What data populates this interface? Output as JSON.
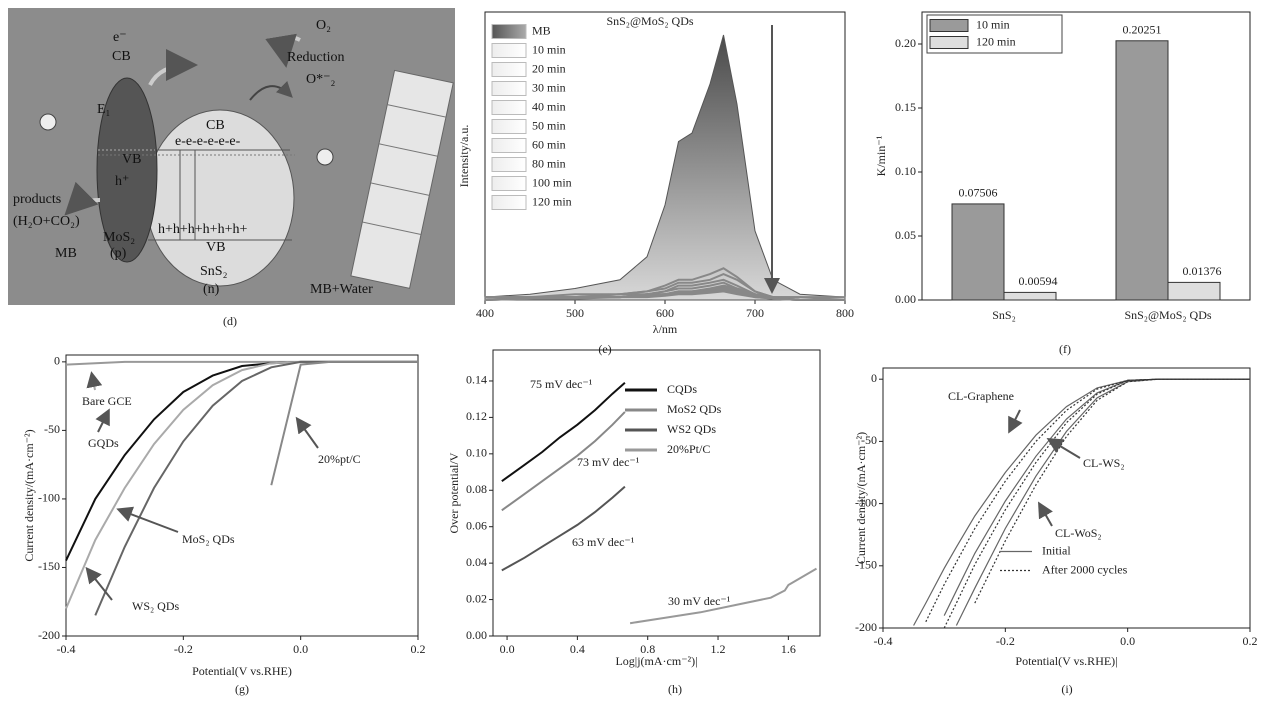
{
  "diagram": {
    "caption": "(d)",
    "labels": [
      "e⁻",
      "CB",
      "E₁",
      "VB",
      "h⁺",
      "products",
      "(H₂O+CO₂)",
      "MoS₂",
      "(p)",
      "MB",
      "CB",
      "e-e-e-e-e-e-",
      "h+h+h+h+h+h+",
      "VB",
      "SnS₂",
      "(n)",
      "O₂",
      "Reduction",
      "O*⁻₂",
      "MB+Water"
    ]
  },
  "chart_data": [
    {
      "type": "line",
      "caption": "(e)",
      "title": "SnS₂@MoS₂ QDs",
      "xlabel": "λ/nm",
      "ylabel": "Intensity/a.u.",
      "xlim": [
        400,
        800
      ],
      "ylim": [
        0,
        1
      ],
      "xticks": [
        400,
        500,
        600,
        700,
        800
      ],
      "legend": "upper left",
      "x": [
        400,
        450,
        500,
        550,
        580,
        600,
        615,
        630,
        650,
        665,
        680,
        700,
        720,
        750,
        800
      ],
      "series": [
        {
          "name": "MB",
          "style": "area",
          "color": "#555555",
          "values": [
            0.01,
            0.02,
            0.04,
            0.07,
            0.15,
            0.33,
            0.55,
            0.58,
            0.75,
            0.92,
            0.68,
            0.24,
            0.07,
            0.02,
            0.01
          ]
        },
        {
          "name": "10 min",
          "color": "#888888",
          "values": [
            0.01,
            0.01,
            0.02,
            0.02,
            0.03,
            0.05,
            0.07,
            0.07,
            0.09,
            0.11,
            0.08,
            0.03,
            0.01,
            0.01,
            0.01
          ]
        },
        {
          "name": "20 min",
          "color": "#888888",
          "values": [
            0.01,
            0.01,
            0.01,
            0.02,
            0.03,
            0.04,
            0.06,
            0.06,
            0.07,
            0.09,
            0.07,
            0.03,
            0.01,
            0.01,
            0
          ]
        },
        {
          "name": "30 min",
          "color": "#888888",
          "values": [
            0.01,
            0.01,
            0.01,
            0.02,
            0.02,
            0.03,
            0.05,
            0.05,
            0.06,
            0.07,
            0.05,
            0.02,
            0.01,
            0,
            0
          ]
        },
        {
          "name": "40 min",
          "color": "#888888",
          "values": [
            0,
            0.01,
            0.01,
            0.01,
            0.02,
            0.03,
            0.04,
            0.04,
            0.05,
            0.06,
            0.04,
            0.02,
            0.01,
            0,
            0
          ]
        },
        {
          "name": "50 min",
          "color": "#888888",
          "values": [
            0,
            0.01,
            0.01,
            0.01,
            0.02,
            0.02,
            0.03,
            0.03,
            0.04,
            0.05,
            0.04,
            0.02,
            0.01,
            0,
            0
          ]
        },
        {
          "name": "60 min",
          "color": "#888888",
          "values": [
            0,
            0.01,
            0.01,
            0.01,
            0.02,
            0.02,
            0.03,
            0.03,
            0.035,
            0.045,
            0.035,
            0.015,
            0.005,
            0,
            0
          ]
        },
        {
          "name": "80 min",
          "color": "#888888",
          "values": [
            0,
            0.005,
            0.01,
            0.01,
            0.015,
            0.02,
            0.025,
            0.025,
            0.03,
            0.04,
            0.03,
            0.015,
            0.005,
            0,
            0
          ]
        },
        {
          "name": "100 min",
          "color": "#888888",
          "values": [
            0,
            0.005,
            0.01,
            0.01,
            0.015,
            0.02,
            0.025,
            0.025,
            0.03,
            0.035,
            0.025,
            0.01,
            0.005,
            0,
            0
          ]
        },
        {
          "name": "120 min",
          "color": "#888888",
          "values": [
            0,
            0.005,
            0.005,
            0.01,
            0.01,
            0.015,
            0.02,
            0.02,
            0.025,
            0.03,
            0.02,
            0.01,
            0.005,
            0,
            0
          ]
        }
      ]
    },
    {
      "type": "bar",
      "caption": "(f)",
      "ylabel": "K/min⁻¹",
      "categories": [
        "SnS₂",
        "SnS₂@MoS₂ QDs"
      ],
      "ylim": [
        0,
        0.225
      ],
      "yticks": [
        {
          "value": 0,
          "label": "0.00"
        },
        0.05,
        {
          "value": 0.1,
          "label": "0.10"
        },
        0.15,
        {
          "value": 0.2,
          "label": "0.20"
        }
      ],
      "legend": "upper left",
      "series": [
        {
          "name": "10 min",
          "color": "#9a9a9a",
          "values": [
            0.07506,
            0.20251
          ]
        },
        {
          "name": "120 min",
          "color": "#dedede",
          "values": [
            0.00594,
            0.01376
          ]
        }
      ]
    },
    {
      "type": "line",
      "caption": "(g)",
      "xlabel": "Potential(V vs.RHE)",
      "ylabel": "Current density/(mA·cm⁻²)",
      "xlim": [
        -0.4,
        0.2
      ],
      "ylim": [
        -200,
        5
      ],
      "xticks": [
        -0.4,
        -0.2,
        {
          "value": 0,
          "label": "0.0"
        },
        0.2
      ],
      "yticks": [
        0,
        -50,
        -100,
        -150,
        -200
      ],
      "x": [
        -0.4,
        -0.35,
        -0.3,
        -0.25,
        -0.2,
        -0.15,
        -0.1,
        -0.05,
        0,
        0.05,
        0.1,
        0.15,
        0.2
      ],
      "series": [
        {
          "name": "Bare GCE",
          "color": "#999999",
          "values": [
            -2,
            -1,
            0,
            0,
            0,
            0,
            0,
            0,
            0,
            0,
            0,
            0,
            0
          ]
        },
        {
          "name": "GQDs",
          "color": "#111111",
          "values": [
            -145,
            -100,
            -68,
            -42,
            -22,
            -10,
            -3,
            -1,
            0,
            0,
            0,
            0,
            0
          ]
        },
        {
          "name": "WS₂ QDs",
          "color": "#aaaaaa",
          "values": [
            -180,
            -130,
            -92,
            -60,
            -35,
            -17,
            -6,
            -1,
            0,
            0,
            0,
            0,
            0
          ]
        },
        {
          "name": "MoS₂ QDs",
          "color": "#666666",
          "values": [
            null,
            -185,
            -135,
            -92,
            -58,
            -32,
            -14,
            -4,
            0,
            0,
            0,
            0,
            0
          ]
        },
        {
          "name": "20%pt/C",
          "color": "#888888",
          "values": [
            null,
            null,
            null,
            null,
            null,
            null,
            null,
            -90,
            -2,
            0,
            0,
            0,
            0
          ]
        }
      ]
    },
    {
      "type": "line",
      "caption": "(h)",
      "xlabel": "Log|j(mA·cm⁻²)|",
      "ylabel": "Over potential/V",
      "xlim": [
        -0.08,
        1.78
      ],
      "ylim": [
        0,
        0.157
      ],
      "xticks": [
        {
          "value": 0,
          "label": "0.0"
        },
        0.4,
        0.8,
        1.2,
        1.6
      ],
      "yticks": [
        {
          "value": 0,
          "label": "0.00"
        },
        0.02,
        0.04,
        0.06,
        0.08,
        {
          "value": 0.1,
          "label": "0.10"
        },
        0.12,
        0.14
      ],
      "legend": "upper right",
      "annotations": [
        "75 mV dec⁻¹",
        "73 mV dec⁻¹",
        "63 mV dec⁻¹",
        "30 mV dec⁻¹"
      ],
      "x": [
        -0.03,
        0.1,
        0.2,
        0.3,
        0.4,
        0.5,
        0.6,
        0.67,
        0.7,
        0.9,
        1.1,
        1.3,
        1.5,
        1.58,
        1.6,
        1.76
      ],
      "series": [
        {
          "name": "CQDs",
          "color": "#111111",
          "values": [
            0.085,
            0.094,
            0.101,
            0.109,
            0.116,
            0.124,
            0.133,
            0.139,
            null,
            null,
            null,
            null,
            null,
            null,
            null,
            null
          ]
        },
        {
          "name": "MoS2 QDs",
          "color": "#888888",
          "values": [
            0.069,
            0.078,
            0.085,
            0.092,
            0.099,
            0.107,
            0.116,
            0.123,
            null,
            null,
            null,
            null,
            null,
            null,
            null,
            null
          ]
        },
        {
          "name": "WS2 QDs",
          "color": "#555555",
          "values": [
            0.036,
            0.043,
            0.049,
            0.055,
            0.061,
            0.068,
            0.076,
            0.082,
            null,
            null,
            null,
            null,
            null,
            null,
            null,
            null
          ]
        },
        {
          "name": "20%Pt/C",
          "color": "#999999",
          "values": [
            null,
            null,
            null,
            null,
            null,
            null,
            null,
            null,
            0.007,
            0.01,
            0.013,
            0.017,
            0.021,
            0.025,
            0.028,
            0.037
          ]
        }
      ]
    },
    {
      "type": "line",
      "caption": "(i)",
      "xlabel": "Potential(V vs.RHE)|",
      "ylabel": "Current density/(mA·cm⁻²)",
      "xlim": [
        -0.4,
        0.2
      ],
      "ylim": [
        -200,
        9
      ],
      "xticks": [
        -0.4,
        -0.2,
        {
          "value": 0,
          "label": "0.0"
        },
        0.2
      ],
      "yticks": [
        0,
        -50,
        -100,
        -150,
        -200
      ],
      "legend": "lower right",
      "x": [
        -0.35,
        -0.33,
        -0.3,
        -0.28,
        -0.25,
        -0.2,
        -0.15,
        -0.1,
        -0.05,
        0,
        0.05,
        0.1,
        0.2
      ],
      "series": [
        {
          "name": "Initial",
          "style": "solid",
          "color": "#666666",
          "curves": [
            {
              "label": "CL-Graphene",
              "values": [
                -198,
                -180,
                -152,
                -135,
                -110,
                -75,
                -45,
                -22,
                -7,
                -1,
                0,
                0,
                0
              ]
            },
            {
              "label": "CL-WS₂",
              "values": [
                null,
                null,
                -190,
                -170,
                -140,
                -98,
                -62,
                -32,
                -11,
                -1,
                0,
                0,
                0
              ]
            },
            {
              "label": "CL-WoS₂",
              "values": [
                null,
                null,
                null,
                -198,
                -168,
                -120,
                -78,
                -42,
                -15,
                -2,
                0,
                0,
                0
              ]
            }
          ]
        },
        {
          "name": "After 2000 cycles",
          "style": "dotted",
          "color": "#333333",
          "curves": [
            {
              "values": [
                null,
                -195,
                -165,
                -147,
                -120,
                -82,
                -50,
                -25,
                -8,
                -1,
                0,
                0,
                0
              ]
            },
            {
              "values": [
                null,
                null,
                -200,
                -180,
                -149,
                -105,
                -67,
                -35,
                -12,
                -1,
                0,
                0,
                0
              ]
            },
            {
              "values": [
                null,
                null,
                null,
                null,
                -180,
                -130,
                -85,
                -46,
                -17,
                -2,
                0,
                0,
                0
              ]
            }
          ]
        }
      ]
    }
  ]
}
